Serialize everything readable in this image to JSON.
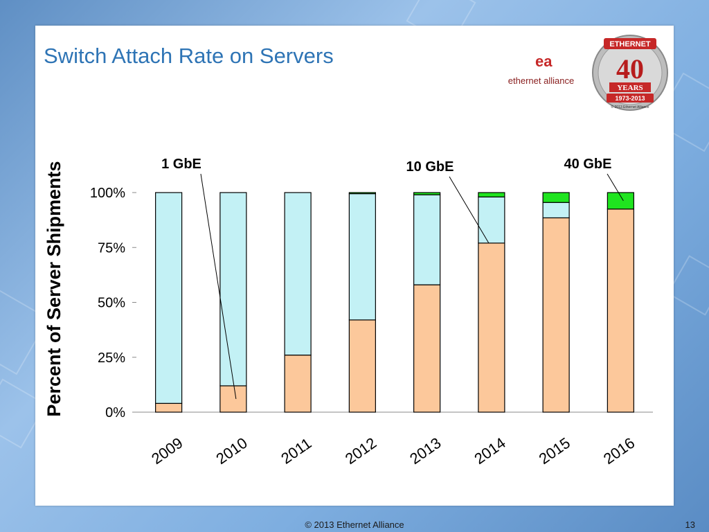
{
  "slide": {
    "title": "Switch Attach Rate on Servers",
    "footer": "© 2013 Ethernet Alliance",
    "page_number": "13"
  },
  "logos": {
    "ea_mark": "ea",
    "ea_text": "ethernet alliance",
    "badge_top": "ETHERNET",
    "badge_years": "YEARS",
    "badge_number": "40",
    "badge_range": "1973-2013",
    "badge_small": "© 2013 Ethernet Alliance"
  },
  "colors": {
    "gbe1": "#fcc89b",
    "gbe10": "#c3f1f5",
    "gbe40": "#1fe41f",
    "title": "#2e74b5"
  },
  "chart_data": {
    "type": "bar",
    "stacked": true,
    "categories": [
      "2009",
      "2010",
      "2011",
      "2012",
      "2013",
      "2014",
      "2015",
      "2016"
    ],
    "series": [
      {
        "name": "1 GbE",
        "values": [
          4,
          12,
          26,
          42,
          58,
          77,
          88.5,
          92.5
        ]
      },
      {
        "name": "10 GbE",
        "values": [
          96,
          88,
          74,
          57.5,
          41,
          21,
          7,
          0
        ]
      },
      {
        "name": "40 GbE",
        "values": [
          0,
          0,
          0,
          0.5,
          1,
          2,
          4.5,
          7.5
        ]
      }
    ],
    "xlabel": "",
    "ylabel": "Percent of Server Shipments",
    "ylim": [
      0,
      100
    ],
    "yticks": [
      "0%",
      "25%",
      "50%",
      "75%",
      "100%"
    ],
    "grid": false,
    "legend": "callouts"
  }
}
